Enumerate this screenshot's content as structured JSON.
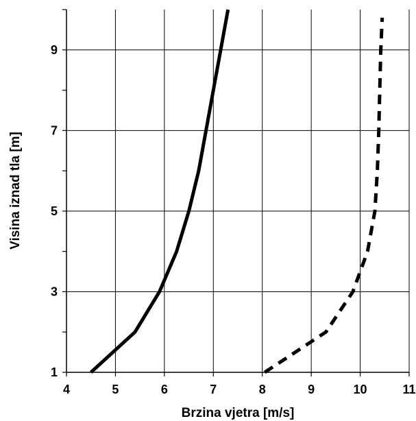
{
  "chart_data": {
    "type": "line",
    "xlabel": "Brzina vjetra [m/s]",
    "ylabel": "Visina iznad tla [m]",
    "xlim": [
      4,
      11
    ],
    "ylim": [
      1,
      10
    ],
    "x_ticks": [
      4,
      5,
      6,
      7,
      8,
      9,
      10,
      11
    ],
    "y_ticks": [
      1,
      3,
      5,
      7,
      9
    ],
    "grid": true,
    "series": [
      {
        "style": "solid",
        "color": "#000000",
        "points": [
          [
            4.5,
            1.0
          ],
          [
            5.4,
            2.0
          ],
          [
            5.9,
            3.0
          ],
          [
            6.25,
            4.0
          ],
          [
            6.5,
            5.0
          ],
          [
            6.7,
            6.0
          ],
          [
            6.85,
            7.0
          ],
          [
            7.0,
            8.0
          ],
          [
            7.15,
            9.0
          ],
          [
            7.3,
            10.0
          ]
        ]
      },
      {
        "style": "dashed",
        "color": "#000000",
        "points": [
          [
            8.05,
            1.0
          ],
          [
            9.3,
            2.0
          ],
          [
            9.85,
            3.0
          ],
          [
            10.15,
            4.0
          ],
          [
            10.3,
            5.0
          ],
          [
            10.35,
            6.0
          ],
          [
            10.38,
            7.0
          ],
          [
            10.4,
            8.0
          ],
          [
            10.42,
            9.0
          ],
          [
            10.45,
            9.8
          ]
        ]
      }
    ]
  }
}
